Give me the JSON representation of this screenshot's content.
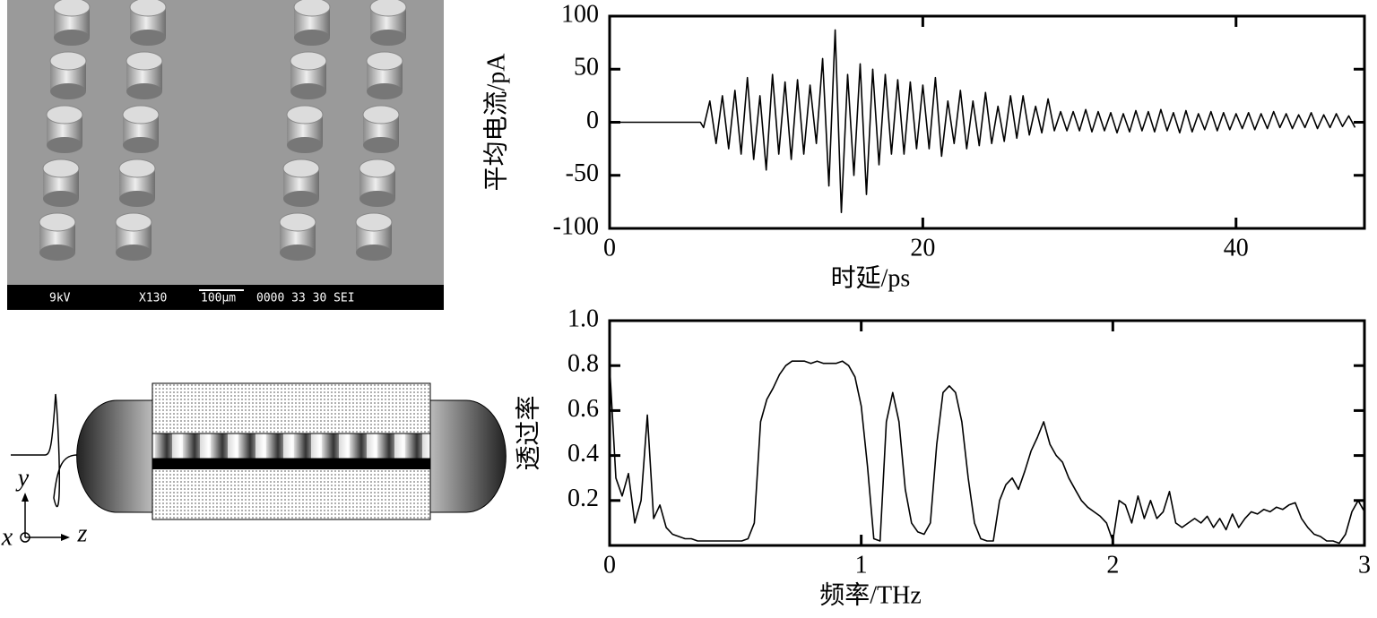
{
  "sem_image": {
    "labels": [
      "9kV",
      "X130",
      "100μm",
      "0000 33 30 SEI"
    ]
  },
  "diagram": {
    "axis_labels": {
      "y": "y",
      "x": "x",
      "z": "z"
    }
  },
  "chart_data": [
    {
      "type": "line",
      "ylabel": "平均电流/pA",
      "xlabel": "时延/ps",
      "x": [
        0,
        5.8,
        6,
        6.4,
        6.8,
        7.2,
        7.6,
        8,
        8.4,
        8.8,
        9.2,
        9.6,
        10,
        10.4,
        10.8,
        11.2,
        11.6,
        12,
        12.4,
        12.8,
        13.2,
        13.6,
        14,
        14.4,
        14.8,
        15.2,
        15.6,
        16,
        16.4,
        16.8,
        17.2,
        17.6,
        18,
        18.4,
        18.8,
        19.2,
        19.6,
        20,
        20.4,
        20.8,
        21.2,
        21.6,
        22,
        22.4,
        22.8,
        23.2,
        23.6,
        24,
        24.4,
        24.8,
        25.2,
        25.6,
        26,
        26.4,
        26.8,
        27.2,
        27.6,
        28,
        28.4,
        28.8,
        29.2,
        29.6,
        30,
        30.4,
        30.8,
        31.2,
        31.6,
        32,
        32.4,
        32.8,
        33.2,
        33.6,
        34,
        34.4,
        34.8,
        35.2,
        35.6,
        36,
        36.4,
        36.8,
        37.2,
        37.6,
        38,
        38.4,
        38.8,
        39.2,
        39.6,
        40,
        40.4,
        40.8,
        41.2,
        41.6,
        42,
        42.4,
        42.8,
        43.2,
        43.6,
        44,
        44.4,
        44.8,
        45.2,
        45.6,
        46,
        46.4,
        46.8,
        47.2,
        47.6
      ],
      "series": [
        {
          "color": "#000000",
          "values": [
            0,
            0,
            -5,
            20,
            -20,
            25,
            -25,
            30,
            -30,
            42,
            -35,
            25,
            -45,
            45,
            -30,
            38,
            -35,
            40,
            -30,
            35,
            -20,
            60,
            -60,
            87,
            -85,
            45,
            -50,
            55,
            -68,
            50,
            -40,
            45,
            -30,
            40,
            -30,
            38,
            -25,
            35,
            -25,
            42,
            -32,
            20,
            -20,
            30,
            -25,
            20,
            -22,
            28,
            -20,
            15,
            -18,
            25,
            -15,
            25,
            -12,
            15,
            -10,
            22,
            -8,
            10,
            -8,
            10,
            -8,
            12,
            -9,
            10,
            -8,
            9,
            -10,
            8,
            -9,
            11,
            -8,
            10,
            -9,
            12,
            -8,
            9,
            -10,
            11,
            -9,
            8,
            -7,
            10,
            -8,
            9,
            -7,
            8,
            -6,
            9,
            -7,
            8,
            -6,
            10,
            -5,
            8,
            -6,
            7,
            -5,
            9,
            -6,
            7,
            -5,
            8,
            -4,
            6,
            -5
          ]
        }
      ],
      "xlim": [
        0,
        48.2
      ],
      "xticks": [
        0,
        20,
        40
      ],
      "ylim": [
        -100,
        100
      ],
      "yticks": [
        -100,
        -50,
        0,
        50,
        100
      ]
    },
    {
      "type": "line",
      "ylabel": "透过率",
      "xlabel": "频率/THz",
      "x": [
        0,
        0.025,
        0.05,
        0.075,
        0.1,
        0.125,
        0.15,
        0.175,
        0.2,
        0.225,
        0.25,
        0.275,
        0.3,
        0.325,
        0.35,
        0.375,
        0.4,
        0.425,
        0.45,
        0.475,
        0.5,
        0.525,
        0.55,
        0.575,
        0.6,
        0.625,
        0.65,
        0.675,
        0.7,
        0.725,
        0.75,
        0.775,
        0.8,
        0.825,
        0.85,
        0.875,
        0.9,
        0.925,
        0.95,
        0.975,
        1,
        1.025,
        1.05,
        1.075,
        1.1,
        1.125,
        1.15,
        1.175,
        1.2,
        1.225,
        1.25,
        1.275,
        1.3,
        1.325,
        1.35,
        1.375,
        1.4,
        1.425,
        1.45,
        1.475,
        1.5,
        1.525,
        1.55,
        1.575,
        1.6,
        1.625,
        1.65,
        1.675,
        1.7,
        1.725,
        1.75,
        1.775,
        1.8,
        1.825,
        1.85,
        1.875,
        1.9,
        1.925,
        1.95,
        1.975,
        2,
        2.025,
        2.05,
        2.075,
        2.1,
        2.125,
        2.15,
        2.175,
        2.2,
        2.225,
        2.25,
        2.275,
        2.3,
        2.325,
        2.35,
        2.375,
        2.4,
        2.425,
        2.45,
        2.475,
        2.5,
        2.525,
        2.55,
        2.575,
        2.6,
        2.625,
        2.65,
        2.675,
        2.7,
        2.725,
        2.75,
        2.775,
        2.8,
        2.825,
        2.85,
        2.875,
        2.9,
        2.925,
        2.95,
        2.975,
        3
      ],
      "series": [
        {
          "color": "#000000",
          "values": [
            0.8,
            0.3,
            0.22,
            0.32,
            0.1,
            0.2,
            0.58,
            0.12,
            0.18,
            0.08,
            0.05,
            0.04,
            0.03,
            0.03,
            0.02,
            0.02,
            0.02,
            0.02,
            0.02,
            0.02,
            0.02,
            0.02,
            0.03,
            0.1,
            0.55,
            0.65,
            0.7,
            0.76,
            0.8,
            0.82,
            0.82,
            0.82,
            0.81,
            0.82,
            0.81,
            0.81,
            0.81,
            0.82,
            0.8,
            0.75,
            0.62,
            0.35,
            0.03,
            0.02,
            0.55,
            0.68,
            0.55,
            0.25,
            0.1,
            0.06,
            0.05,
            0.1,
            0.45,
            0.68,
            0.71,
            0.68,
            0.55,
            0.3,
            0.1,
            0.03,
            0.02,
            0.02,
            0.2,
            0.27,
            0.3,
            0.25,
            0.33,
            0.42,
            0.48,
            0.55,
            0.45,
            0.4,
            0.37,
            0.3,
            0.25,
            0.2,
            0.17,
            0.15,
            0.13,
            0.1,
            0.02,
            0.2,
            0.18,
            0.1,
            0.22,
            0.12,
            0.2,
            0.12,
            0.15,
            0.24,
            0.1,
            0.08,
            0.1,
            0.12,
            0.1,
            0.13,
            0.08,
            0.12,
            0.07,
            0.14,
            0.08,
            0.12,
            0.15,
            0.14,
            0.16,
            0.15,
            0.17,
            0.16,
            0.18,
            0.19,
            0.12,
            0.08,
            0.05,
            0.04,
            0.02,
            0.02,
            0.01,
            0.05,
            0.15,
            0.2,
            0.15
          ]
        }
      ],
      "xlim": [
        0,
        3
      ],
      "xticks": [
        0,
        1,
        2,
        3
      ],
      "ylim": [
        0,
        1
      ],
      "yticks": [
        0.2,
        0.4,
        0.6,
        0.8,
        {
          "value": 1,
          "label": "1.0"
        }
      ]
    }
  ]
}
